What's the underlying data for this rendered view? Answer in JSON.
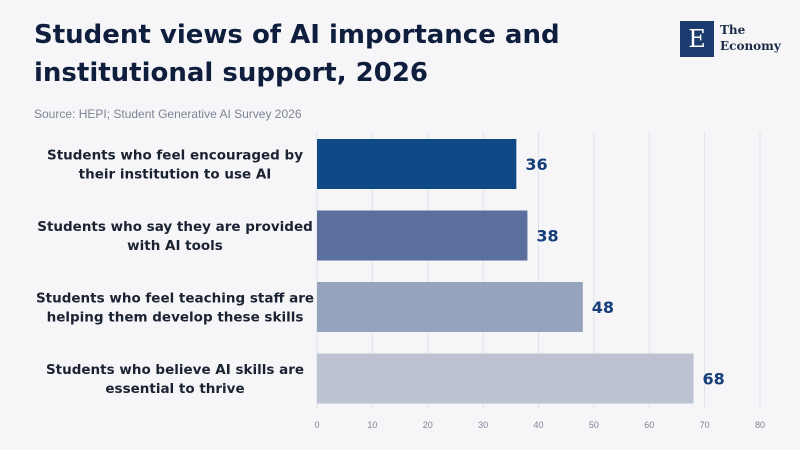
{
  "header": {
    "title_line1": "Student views of AI importance and",
    "title_line2": "institutional support, 2026",
    "source": "Source: HEPI; Student Generative AI Survey 2026"
  },
  "logo": {
    "letter": "E",
    "line1": "The",
    "line2": "Economy"
  },
  "chart_data": {
    "type": "bar",
    "orientation": "horizontal",
    "categories": [
      [
        "Students who feel encouraged by",
        "their institution to use AI"
      ],
      [
        "Students who say they are provided",
        "with AI tools"
      ],
      [
        "Students who feel teaching staff are",
        "helping them develop these skills"
      ],
      [
        "Students who believe AI skills are",
        "essential to thrive"
      ]
    ],
    "values": [
      36,
      38,
      48,
      68
    ],
    "colors": [
      "#0f4a87",
      "#5b6f9c",
      "#96a3bc",
      "#bcc2d1"
    ],
    "xlim": [
      0,
      80
    ],
    "xticks": [
      0,
      10,
      20,
      30,
      40,
      50,
      60,
      70,
      80
    ],
    "grid": true,
    "legend": "none"
  }
}
